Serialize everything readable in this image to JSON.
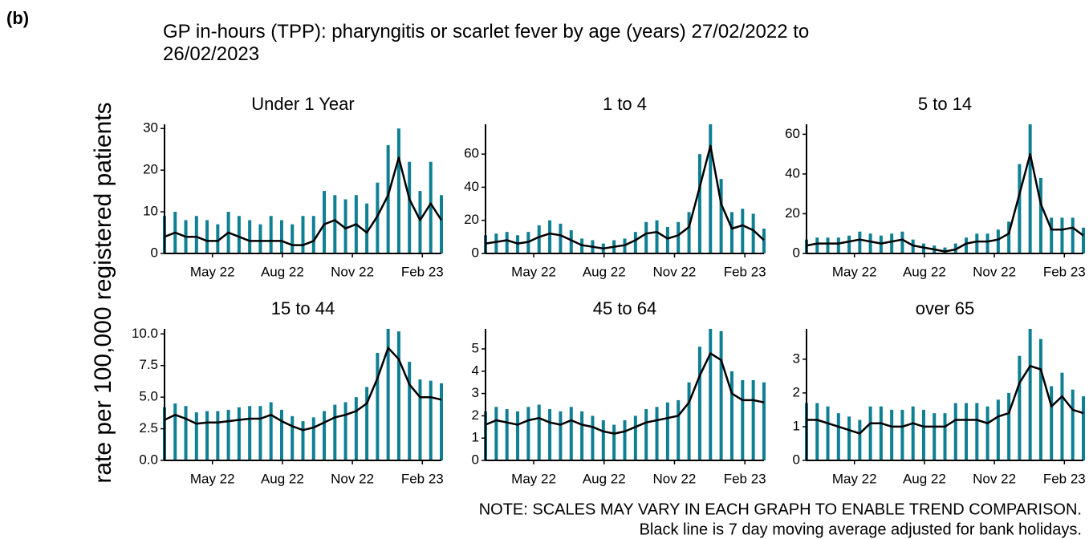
{
  "panel_label": "(b)",
  "title": "GP in-hours (TPP): pharyngitis or scarlet fever by age (years) 27/02/2022 to 26/02/2023",
  "y_axis_label": "rate per 100,000 registered patients",
  "notes": [
    "NOTE: SCALES MAY VARY IN EACH GRAPH TO ENABLE TREND COMPARISON.",
    "Black line is 7 day moving average adjusted for bank holidays."
  ],
  "chart_data": [
    {
      "type": "line",
      "title": "Under 1 Year",
      "x": [
        0,
        14,
        28,
        42,
        56,
        70,
        84,
        98,
        112,
        126,
        140,
        154,
        168,
        182,
        196,
        210,
        224,
        238,
        252,
        266,
        280,
        294,
        308,
        322,
        336,
        350,
        364
      ],
      "xlim": [
        0,
        364
      ],
      "xticks": [
        {
          "value": 63,
          "label": "May 22"
        },
        {
          "value": 155,
          "label": "Aug 22"
        },
        {
          "value": 247,
          "label": "Nov 22"
        },
        {
          "value": 339,
          "label": "Feb 23"
        }
      ],
      "ylim": [
        0,
        31
      ],
      "yticks": [
        0,
        10,
        20,
        30
      ],
      "series": [
        {
          "style": "spike",
          "color": "#0f7f94",
          "values": [
            9,
            10,
            8,
            9,
            8,
            7,
            10,
            9,
            8,
            7,
            9,
            8,
            7,
            9,
            9,
            15,
            14,
            13,
            14,
            12,
            17,
            26,
            30,
            22,
            15,
            22,
            14
          ]
        },
        {
          "style": "line",
          "color": "#000000",
          "values": [
            4,
            5,
            4,
            4,
            3,
            3,
            5,
            4,
            3,
            3,
            3,
            3,
            2,
            2,
            3,
            7,
            8,
            6,
            7,
            5,
            9,
            14,
            23,
            13,
            8,
            12,
            8
          ]
        }
      ]
    },
    {
      "type": "line",
      "title": "1 to 4",
      "x": [
        0,
        14,
        28,
        42,
        56,
        70,
        84,
        98,
        112,
        126,
        140,
        154,
        168,
        182,
        196,
        210,
        224,
        238,
        252,
        266,
        280,
        294,
        308,
        322,
        336,
        350,
        364
      ],
      "xlim": [
        0,
        364
      ],
      "xticks": [
        {
          "value": 63,
          "label": "May 22"
        },
        {
          "value": 155,
          "label": "Aug 22"
        },
        {
          "value": 247,
          "label": "Nov 22"
        },
        {
          "value": 339,
          "label": "Feb 23"
        }
      ],
      "ylim": [
        0,
        78
      ],
      "yticks": [
        0,
        20,
        40,
        60
      ],
      "series": [
        {
          "style": "spike",
          "color": "#0f7f94",
          "values": [
            11,
            12,
            13,
            11,
            13,
            17,
            20,
            18,
            14,
            9,
            8,
            6,
            8,
            9,
            13,
            19,
            20,
            16,
            19,
            25,
            60,
            78,
            45,
            25,
            27,
            24,
            15
          ]
        },
        {
          "style": "line",
          "color": "#000000",
          "values": [
            6,
            7,
            8,
            6,
            7,
            10,
            12,
            11,
            8,
            5,
            4,
            3,
            4,
            5,
            8,
            12,
            13,
            9,
            11,
            16,
            40,
            65,
            30,
            15,
            17,
            14,
            8
          ]
        }
      ]
    },
    {
      "type": "line",
      "title": "5 to 14",
      "x": [
        0,
        14,
        28,
        42,
        56,
        70,
        84,
        98,
        112,
        126,
        140,
        154,
        168,
        182,
        196,
        210,
        224,
        238,
        252,
        266,
        280,
        294,
        308,
        322,
        336,
        350,
        364
      ],
      "xlim": [
        0,
        364
      ],
      "xticks": [
        {
          "value": 63,
          "label": "May 22"
        },
        {
          "value": 155,
          "label": "Aug 22"
        },
        {
          "value": 247,
          "label": "Nov 22"
        },
        {
          "value": 339,
          "label": "Feb 23"
        }
      ],
      "ylim": [
        0,
        65
      ],
      "yticks": [
        0,
        20,
        40,
        60
      ],
      "series": [
        {
          "style": "spike",
          "color": "#0f7f94",
          "values": [
            7,
            8,
            8,
            8,
            9,
            11,
            10,
            9,
            10,
            11,
            7,
            5,
            4,
            3,
            5,
            8,
            10,
            10,
            12,
            16,
            45,
            65,
            38,
            18,
            18,
            18,
            13
          ]
        },
        {
          "style": "line",
          "color": "#000000",
          "values": [
            4,
            5,
            5,
            5,
            6,
            7,
            6,
            5,
            6,
            7,
            4,
            3,
            2,
            1,
            2,
            5,
            6,
            6,
            7,
            10,
            30,
            50,
            25,
            12,
            12,
            13,
            9
          ]
        }
      ]
    },
    {
      "type": "line",
      "title": "15 to 44",
      "x": [
        0,
        14,
        28,
        42,
        56,
        70,
        84,
        98,
        112,
        126,
        140,
        154,
        168,
        182,
        196,
        210,
        224,
        238,
        252,
        266,
        280,
        294,
        308,
        322,
        336,
        350,
        364
      ],
      "xlim": [
        0,
        364
      ],
      "xticks": [
        {
          "value": 63,
          "label": "May 22"
        },
        {
          "value": 155,
          "label": "Aug 22"
        },
        {
          "value": 247,
          "label": "Nov 22"
        },
        {
          "value": 339,
          "label": "Feb 23"
        }
      ],
      "ylim": [
        0,
        10.4
      ],
      "yticks": [
        {
          "value": 0,
          "label": "0.0"
        },
        2.5,
        {
          "value": 5,
          "label": "5.0"
        },
        7.5,
        {
          "value": 10,
          "label": "10.0"
        }
      ],
      "series": [
        {
          "style": "spike",
          "color": "#0f7f94",
          "values": [
            4.2,
            4.5,
            4.3,
            3.8,
            3.9,
            3.9,
            4.0,
            4.2,
            4.3,
            4.3,
            4.6,
            4.0,
            3.5,
            3.1,
            3.4,
            3.9,
            4.4,
            4.6,
            5.0,
            5.8,
            8.5,
            10.4,
            10.2,
            7.8,
            6.4,
            6.3,
            6.1
          ]
        },
        {
          "style": "line",
          "color": "#000000",
          "values": [
            3.2,
            3.6,
            3.3,
            2.9,
            3.0,
            3.0,
            3.1,
            3.2,
            3.3,
            3.3,
            3.6,
            3.1,
            2.7,
            2.4,
            2.6,
            3.0,
            3.4,
            3.6,
            3.9,
            4.5,
            6.5,
            8.9,
            8.0,
            6.0,
            5.0,
            5.0,
            4.8
          ]
        }
      ]
    },
    {
      "type": "line",
      "title": "45 to 64",
      "x": [
        0,
        14,
        28,
        42,
        56,
        70,
        84,
        98,
        112,
        126,
        140,
        154,
        168,
        182,
        196,
        210,
        224,
        238,
        252,
        266,
        280,
        294,
        308,
        322,
        336,
        350,
        364
      ],
      "xlim": [
        0,
        364
      ],
      "xticks": [
        {
          "value": 63,
          "label": "May 22"
        },
        {
          "value": 155,
          "label": "Aug 22"
        },
        {
          "value": 247,
          "label": "Nov 22"
        },
        {
          "value": 339,
          "label": "Feb 23"
        }
      ],
      "ylim": [
        0,
        5.9
      ],
      "yticks": [
        0,
        1,
        2,
        3,
        4,
        5
      ],
      "series": [
        {
          "style": "spike",
          "color": "#0f7f94",
          "values": [
            2.2,
            2.4,
            2.3,
            2.2,
            2.4,
            2.5,
            2.3,
            2.2,
            2.4,
            2.2,
            2.0,
            1.8,
            1.6,
            1.8,
            2.0,
            2.3,
            2.4,
            2.6,
            2.7,
            3.5,
            5.1,
            5.9,
            5.8,
            4.0,
            3.6,
            3.6,
            3.5
          ]
        },
        {
          "style": "line",
          "color": "#000000",
          "values": [
            1.6,
            1.8,
            1.7,
            1.6,
            1.8,
            1.9,
            1.7,
            1.6,
            1.8,
            1.6,
            1.5,
            1.3,
            1.2,
            1.3,
            1.5,
            1.7,
            1.8,
            1.9,
            2.0,
            2.6,
            3.8,
            4.8,
            4.5,
            3.0,
            2.7,
            2.7,
            2.6
          ]
        }
      ]
    },
    {
      "type": "line",
      "title": "over 65",
      "x": [
        0,
        14,
        28,
        42,
        56,
        70,
        84,
        98,
        112,
        126,
        140,
        154,
        168,
        182,
        196,
        210,
        224,
        238,
        252,
        266,
        280,
        294,
        308,
        322,
        336,
        350,
        364
      ],
      "xlim": [
        0,
        364
      ],
      "xticks": [
        {
          "value": 63,
          "label": "May 22"
        },
        {
          "value": 155,
          "label": "Aug 22"
        },
        {
          "value": 247,
          "label": "Nov 22"
        },
        {
          "value": 339,
          "label": "Feb 23"
        }
      ],
      "ylim": [
        0,
        3.9
      ],
      "yticks": [
        0,
        1,
        2,
        3
      ],
      "series": [
        {
          "style": "spike",
          "color": "#0f7f94",
          "values": [
            1.7,
            1.7,
            1.6,
            1.4,
            1.3,
            1.2,
            1.6,
            1.6,
            1.5,
            1.5,
            1.6,
            1.5,
            1.4,
            1.4,
            1.7,
            1.7,
            1.7,
            1.6,
            1.8,
            2.0,
            3.1,
            3.9,
            3.6,
            2.2,
            2.6,
            2.1,
            1.9
          ]
        },
        {
          "style": "line",
          "color": "#000000",
          "values": [
            1.2,
            1.2,
            1.1,
            1.0,
            0.9,
            0.8,
            1.1,
            1.1,
            1.0,
            1.0,
            1.1,
            1.0,
            1.0,
            1.0,
            1.2,
            1.2,
            1.2,
            1.1,
            1.3,
            1.4,
            2.3,
            2.8,
            2.7,
            1.6,
            1.9,
            1.5,
            1.4
          ]
        }
      ]
    }
  ]
}
